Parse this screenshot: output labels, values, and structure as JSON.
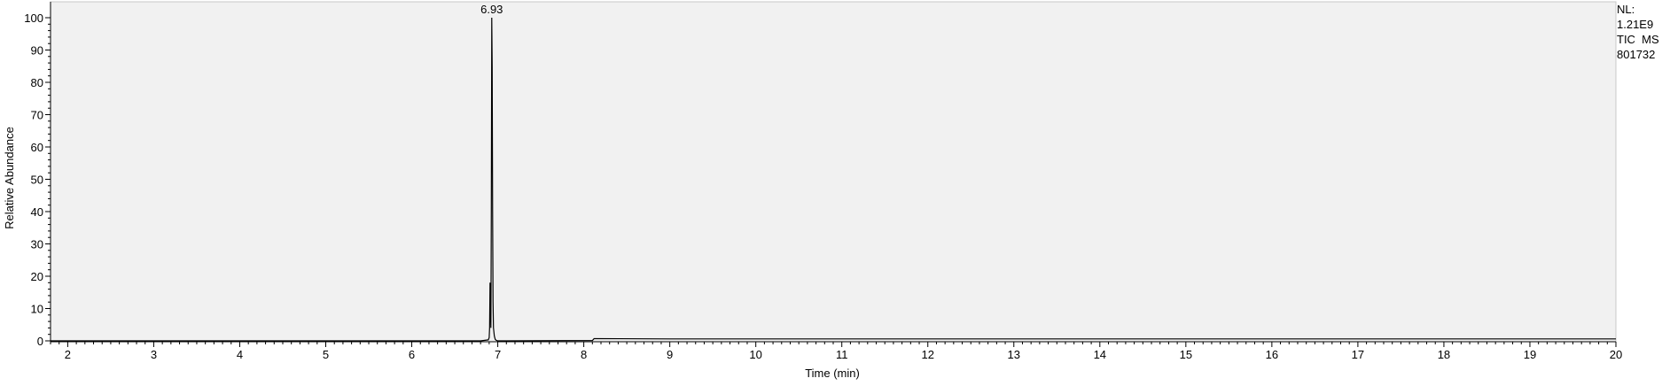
{
  "chart_data": {
    "type": "line",
    "title": "",
    "xlabel": "Time (min)",
    "ylabel": "Relative Abundance",
    "xlim": [
      1.8,
      20
    ],
    "ylim": [
      0,
      100
    ],
    "xticks": [
      2,
      3,
      4,
      5,
      6,
      7,
      8,
      9,
      10,
      11,
      12,
      13,
      14,
      15,
      16,
      17,
      18,
      19,
      20
    ],
    "yticks": [
      0,
      10,
      20,
      30,
      40,
      50,
      60,
      70,
      80,
      90,
      100
    ],
    "grid": false,
    "series": [
      {
        "x": [
          1.8,
          6.8,
          6.89,
          6.9,
          6.905,
          6.91,
          6.915,
          6.92,
          6.925,
          6.93,
          6.935,
          6.94,
          6.945,
          6.95,
          6.96,
          6.97,
          6.98,
          7.0,
          7.1,
          8.1,
          8.12,
          9.0,
          12.0,
          16.0,
          20.0
        ],
        "y": [
          0,
          0,
          0.3,
          1,
          4,
          18,
          10,
          4,
          40,
          100,
          85,
          40,
          12,
          4,
          1.5,
          0.5,
          0.2,
          0,
          0,
          0.1,
          0.7,
          0.6,
          0.6,
          0.6,
          0.6
        ]
      }
    ],
    "annotations": [
      {
        "x": 6.93,
        "y": 100,
        "text": "6.93"
      }
    ]
  },
  "info": {
    "nl_label": "NL:",
    "nl_value": "1.21E9",
    "trace": "TIC  MS",
    "sample": "801732"
  },
  "colors": {
    "plot_background": "#f1f1f1",
    "trace": "#000000"
  }
}
